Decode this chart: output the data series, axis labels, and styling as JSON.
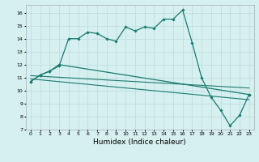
{
  "title": "",
  "xlabel": "Humidex (Indice chaleur)",
  "ylabel": "",
  "background_color": "#d6f0f0",
  "grid_color": "#c0dede",
  "line_color": "#1a7a6e",
  "xlim": [
    -0.5,
    23.5
  ],
  "ylim": [
    7,
    16.6
  ],
  "yticks": [
    7,
    8,
    9,
    10,
    11,
    12,
    13,
    14,
    15,
    16
  ],
  "xticks": [
    0,
    1,
    2,
    3,
    4,
    5,
    6,
    7,
    8,
    9,
    10,
    11,
    12,
    13,
    14,
    15,
    16,
    17,
    18,
    19,
    20,
    21,
    22,
    23
  ],
  "main_x": [
    0,
    1,
    2,
    3,
    4,
    5,
    6,
    7,
    8,
    9,
    10,
    11,
    12,
    13,
    14,
    15,
    16,
    17,
    18,
    19,
    20,
    21,
    22,
    23
  ],
  "main_y": [
    10.7,
    11.2,
    11.5,
    11.9,
    14.0,
    14.0,
    14.5,
    14.4,
    14.0,
    13.8,
    14.9,
    14.6,
    14.9,
    14.8,
    15.5,
    15.5,
    16.2,
    13.7,
    11.0,
    9.5,
    8.5,
    7.3,
    8.1,
    9.7
  ],
  "line2_x": [
    0,
    1,
    2,
    3,
    23
  ],
  "line2_y": [
    10.7,
    11.2,
    11.5,
    12.0,
    9.7
  ],
  "trend1_x": [
    0,
    23
  ],
  "trend1_y": [
    11.15,
    10.2
  ],
  "trend2_x": [
    0,
    23
  ],
  "trend2_y": [
    10.9,
    9.3
  ]
}
